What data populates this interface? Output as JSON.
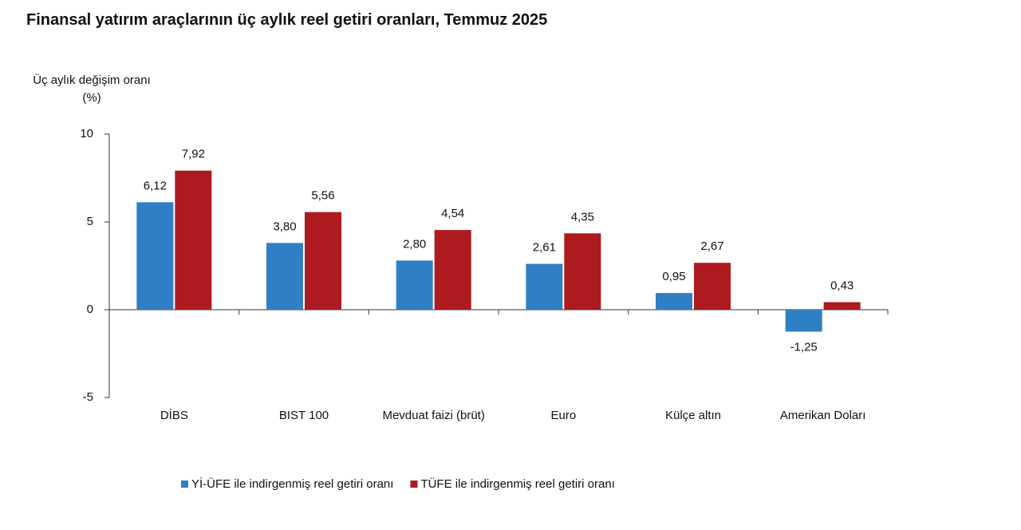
{
  "chart_data": {
    "type": "bar",
    "title": "Finansal yatırım araçlarının üç aylık reel getiri oranları, Temmuz 2025",
    "y_label": "Üç aylık değişim oranı (%)",
    "categories": [
      "DİBS",
      "BIST 100",
      "Mevduat faizi (brüt)",
      "Euro",
      "Külçe altın",
      "Amerikan Doları"
    ],
    "series": [
      {
        "name": "Yİ-ÜFE ile indirgenmiş reel getiri oranı",
        "color": "#2f7fc5",
        "values": [
          6.12,
          3.8,
          2.8,
          2.61,
          0.95,
          -1.25
        ],
        "value_labels": [
          "6,12",
          "3,80",
          "2,80",
          "2,61",
          "0,95",
          "-1,25"
        ]
      },
      {
        "name": "TÜFE ile indirgenmiş reel getiri oranı",
        "color": "#ad1a1f",
        "values": [
          7.92,
          5.56,
          4.54,
          4.35,
          2.67,
          0.43
        ],
        "value_labels": [
          "7,92",
          "5,56",
          "4,54",
          "4,35",
          "2,67",
          "0,43"
        ]
      }
    ],
    "ylim": [
      -5,
      10
    ],
    "yticks": [
      -5,
      0,
      5,
      10
    ],
    "legend": "bottom"
  }
}
